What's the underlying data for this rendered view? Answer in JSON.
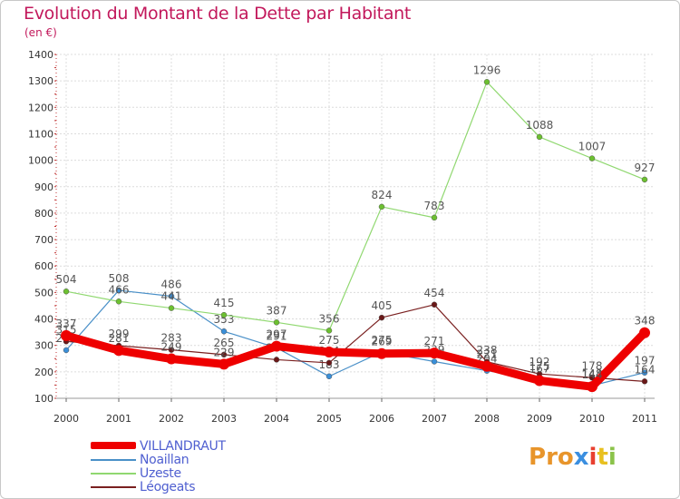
{
  "header": {
    "title": "Evolution du Montant de la Dette par Habitant",
    "unit": "(en €)"
  },
  "logo": {
    "letters": [
      "P",
      "r",
      "o",
      "x",
      "i",
      "t",
      "i"
    ]
  },
  "colors": {
    "title": "#c2185b",
    "grid": "#dcdcdc",
    "axis_text": "#333333",
    "legend_text": "#4f5fd0",
    "logo": [
      "#e8952b",
      "#e8952b",
      "#e8952b",
      "#3b8fe0",
      "#e84030",
      "#e8c020",
      "#8bc34a"
    ]
  },
  "chart_data": {
    "type": "line",
    "title": "Evolution du Montant de la Dette par Habitant",
    "ylabel": "(en €)",
    "xlabel": "",
    "categories": [
      "2000",
      "2001",
      "2002",
      "2003",
      "2004",
      "2005",
      "2006",
      "2007",
      "2008",
      "2009",
      "2010",
      "2011"
    ],
    "ylim": [
      100,
      1400
    ],
    "yticks": [
      100,
      200,
      300,
      400,
      500,
      600,
      700,
      800,
      900,
      1000,
      1100,
      1200,
      1300,
      1400
    ],
    "grid": true,
    "legend_position": "bottom-left",
    "series": [
      {
        "name": "Noaillan",
        "color": "#4a90c8",
        "marker": "#3a8fd8",
        "values": [
          282,
          508,
          486,
          353,
          291,
          183,
          275,
          239,
          204,
          175,
          148,
          197
        ],
        "labels": [
          "282",
          "508",
          "486",
          "353",
          "291",
          "183",
          "275",
          "239",
          "204",
          "175",
          "148",
          "197"
        ]
      },
      {
        "name": "Uzeste",
        "color": "#90d870",
        "marker": "#6cc030",
        "values": [
          504,
          466,
          441,
          415,
          387,
          356,
          824,
          783,
          1296,
          1088,
          1007,
          927
        ],
        "labels": [
          "504",
          "466",
          "441",
          "415",
          "387",
          "356",
          "824",
          "783",
          "1296",
          "1088",
          "1007",
          "927"
        ]
      },
      {
        "name": "Léogeats",
        "color": "#7a2020",
        "marker": "#6a1818",
        "values": [
          315,
          299,
          283,
          265,
          246,
          234,
          405,
          454,
          238,
          192,
          178,
          164
        ],
        "labels": [
          "315",
          "299",
          "283",
          "265",
          "246",
          "234",
          "405",
          "454",
          "238",
          "192",
          "178",
          "164"
        ]
      },
      {
        "name": "VILLANDRAUT",
        "color": "#ee0000",
        "marker": "#ee0000",
        "values": [
          337,
          281,
          249,
          229,
          297,
          275,
          269,
          271,
          221,
          167,
          144,
          348
        ],
        "labels": [
          "337",
          "281",
          "249",
          "229",
          "297",
          "275",
          "269",
          "271",
          "221",
          "167",
          "144",
          "348"
        ]
      }
    ],
    "legend": [
      "VILLANDRAUT",
      "Noaillan",
      "Uzeste",
      "Léogeats"
    ]
  }
}
